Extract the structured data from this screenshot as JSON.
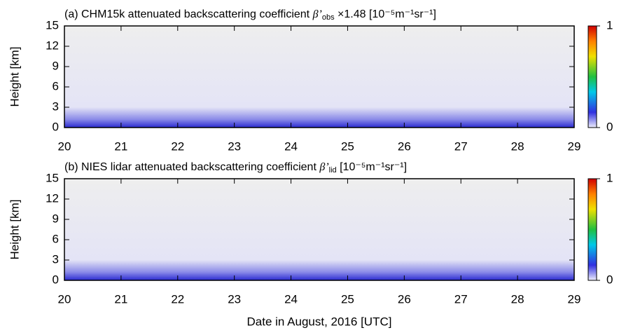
{
  "chart_data": [
    {
      "type": "heatmap",
      "title": {
        "text": "(a) CHM15k attenuated backscattering coefficient ",
        "symbol": "β’",
        "sub": "obs",
        "rest": " ×1.48 [10⁻⁵m⁻¹sr⁻¹]"
      },
      "ylabel": "Height [km]",
      "xlim": [
        20,
        29
      ],
      "xticks": [
        20,
        21,
        22,
        23,
        24,
        25,
        26,
        27,
        28,
        29
      ],
      "ylim": [
        0,
        15
      ],
      "yticks": [
        0,
        3,
        6,
        9,
        12,
        15
      ],
      "colorbar_lim": [
        0,
        1
      ],
      "colorbar_ticks": [
        0,
        1
      ]
    },
    {
      "type": "heatmap",
      "title": {
        "text": "(b) NIES lidar attenuated backscattering coefficient ",
        "symbol": "β’",
        "sub": "lid",
        "rest": " [10⁻⁵m⁻¹sr⁻¹]"
      },
      "ylabel": "Height [km]",
      "xlabel": "Date in August, 2016 [UTC]",
      "xlim": [
        20,
        29
      ],
      "xticks": [
        20,
        21,
        22,
        23,
        24,
        25,
        26,
        27,
        28,
        29
      ],
      "ylim": [
        0,
        15
      ],
      "yticks": [
        0,
        3,
        6,
        9,
        12,
        15
      ],
      "colorbar_lim": [
        0,
        1
      ],
      "colorbar_ticks": [
        0,
        1
      ]
    }
  ]
}
